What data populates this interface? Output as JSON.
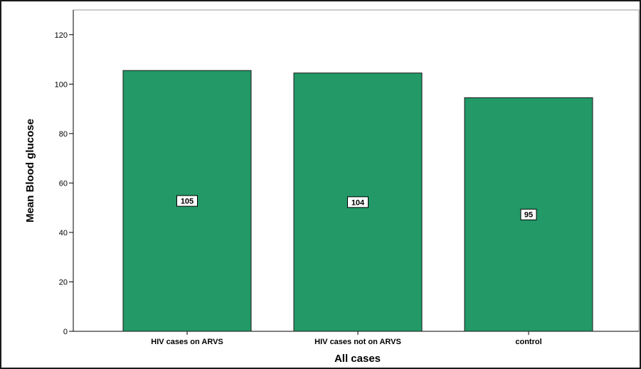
{
  "chart_data": {
    "type": "bar",
    "title": "",
    "xlabel": "All cases",
    "ylabel": "Mean Blood glucose",
    "categories": [
      "HIV cases on ARVS",
      "HIV cases not on ARVS",
      "control"
    ],
    "values": [
      105.5,
      104.5,
      94.5
    ],
    "data_labels": [
      "105",
      "104",
      "95"
    ],
    "ylim": [
      0,
      130
    ],
    "yticks": [
      0,
      20,
      40,
      60,
      80,
      100,
      120
    ],
    "bar_color": "#229966",
    "grid": false,
    "legend": "none"
  }
}
